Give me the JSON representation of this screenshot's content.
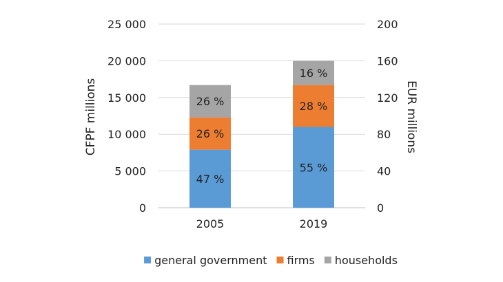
{
  "chart_data": {
    "type": "bar",
    "stacked": true,
    "categories": [
      "2005",
      "2019"
    ],
    "series": [
      {
        "name": "general government",
        "color": "#5b9bd5",
        "values": [
          7900,
          11000
        ],
        "labels": [
          "47 %",
          "55 %"
        ]
      },
      {
        "name": "firms",
        "color": "#ed7d31",
        "values": [
          4400,
          5700
        ],
        "labels": [
          "26 %",
          "28 %"
        ]
      },
      {
        "name": "households",
        "color": "#a5a5a5",
        "values": [
          4400,
          3300
        ],
        "labels": [
          "26 %",
          "16 %"
        ]
      }
    ],
    "ylabel": "CFPF millions",
    "y2label": "EUR millions",
    "ylim": [
      0,
      25000
    ],
    "yticks": [
      0,
      5000,
      10000,
      15000,
      20000,
      25000
    ],
    "ytick_labels": [
      "0",
      "5 000",
      "10 000",
      "15 000",
      "20 000",
      "25 000"
    ],
    "y2lim": [
      0,
      200
    ],
    "y2ticks": [
      0,
      40,
      80,
      120,
      160,
      200
    ],
    "y2tick_labels": [
      "0",
      "40",
      "80",
      "120",
      "160",
      "200"
    ],
    "grid": true,
    "legend_position": "bottom",
    "gridline_color": "#d9d9d9",
    "axis_color": "#bfbfbf"
  }
}
